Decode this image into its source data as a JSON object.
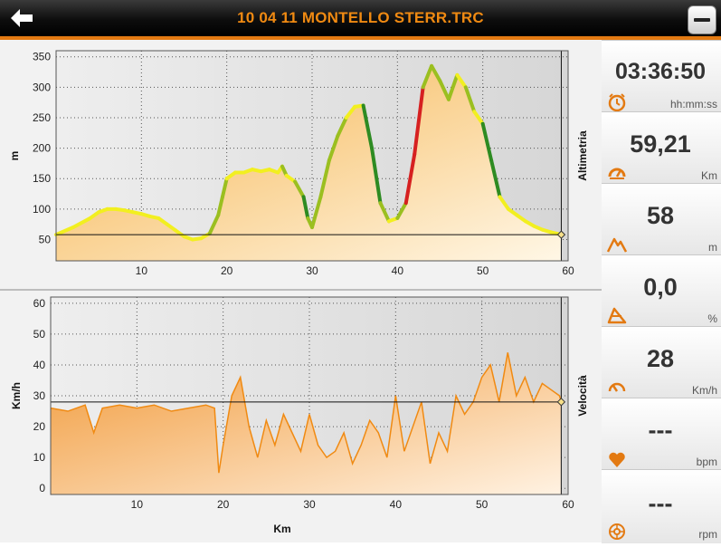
{
  "header": {
    "title": "10 04 11 MONTELLO STERR.TRC"
  },
  "side_panel": [
    {
      "value": "03:36:50",
      "unit": "hh:mm:ss",
      "icon": "clock-icon"
    },
    {
      "value": "59,21",
      "unit": "Km",
      "icon": "speedometer-icon"
    },
    {
      "value": "58",
      "unit": "m",
      "icon": "mountain-icon"
    },
    {
      "value": "0,0",
      "unit": "%",
      "icon": "slope-icon"
    },
    {
      "value": "28",
      "unit": "Km/h",
      "icon": "speed-gauge-icon"
    },
    {
      "value": "---",
      "unit": "bpm",
      "icon": "heart-icon"
    },
    {
      "value": "---",
      "unit": "rpm",
      "icon": "cadence-icon"
    }
  ],
  "colors": {
    "accent": "#e37a12",
    "title": "#f08a12",
    "climb_hard": "#d62020",
    "climb_mid": "#2e8b22",
    "flat": "#f2ef20"
  },
  "chart_data": [
    {
      "type": "area",
      "side_label": "Altimetria",
      "ylabel": "m",
      "ylim": [
        15,
        360
      ],
      "xlim": [
        0,
        60
      ],
      "yticks": [
        50,
        100,
        150,
        200,
        250,
        300,
        350
      ],
      "xticks": [
        10,
        20,
        30,
        40,
        50,
        60
      ],
      "grid": true,
      "cursor_x": 59.2,
      "reference_y": 58,
      "x": [
        0,
        2,
        4,
        5,
        6,
        7,
        8,
        9,
        10,
        11,
        12,
        13,
        14,
        15,
        16,
        17,
        18,
        19,
        19.5,
        20,
        21,
        22,
        23,
        24,
        25,
        26,
        26.5,
        27,
        28,
        29,
        29.5,
        30,
        31,
        32,
        33,
        34,
        35,
        36,
        37,
        38,
        39,
        40,
        41,
        42,
        43,
        44,
        45,
        46,
        47,
        48,
        49,
        50,
        51,
        52,
        53,
        54,
        55,
        56,
        57,
        58,
        59.2
      ],
      "y": [
        58,
        70,
        85,
        95,
        100,
        100,
        98,
        95,
        92,
        88,
        85,
        75,
        65,
        55,
        50,
        52,
        60,
        90,
        120,
        150,
        160,
        160,
        165,
        162,
        165,
        160,
        170,
        155,
        145,
        120,
        85,
        70,
        120,
        180,
        220,
        250,
        268,
        270,
        200,
        110,
        80,
        85,
        110,
        190,
        300,
        335,
        310,
        280,
        320,
        300,
        260,
        240,
        180,
        120,
        100,
        90,
        80,
        72,
        66,
        62,
        58
      ]
    },
    {
      "type": "line",
      "side_label": "Velocità",
      "ylabel": "Km/h",
      "xlabel": "Km",
      "ylim": [
        -2,
        62
      ],
      "xlim": [
        0,
        60
      ],
      "yticks": [
        0,
        10,
        20,
        30,
        40,
        50,
        60
      ],
      "xticks": [
        10,
        20,
        30,
        40,
        50,
        60
      ],
      "grid": true,
      "cursor_x": 59.2,
      "reference_y": 28,
      "x": [
        0,
        2,
        4,
        5,
        6,
        8,
        10,
        12,
        14,
        16,
        18,
        19,
        19.5,
        20,
        21,
        22,
        23,
        24,
        25,
        26,
        27,
        28,
        29,
        30,
        31,
        32,
        33,
        34,
        35,
        36,
        37,
        38,
        39,
        40,
        41,
        42,
        43,
        44,
        45,
        46,
        47,
        48,
        49,
        50,
        51,
        52,
        53,
        54,
        55,
        56,
        57,
        58,
        59,
        59.2
      ],
      "y": [
        26,
        25,
        27,
        18,
        26,
        27,
        26,
        27,
        25,
        26,
        27,
        26,
        5,
        14,
        30,
        36,
        20,
        10,
        22,
        14,
        24,
        18,
        12,
        24,
        14,
        10,
        12,
        18,
        8,
        14,
        22,
        18,
        10,
        30,
        12,
        20,
        28,
        8,
        18,
        12,
        30,
        24,
        28,
        36,
        40,
        28,
        44,
        30,
        36,
        28,
        34,
        32,
        30,
        28
      ]
    }
  ]
}
